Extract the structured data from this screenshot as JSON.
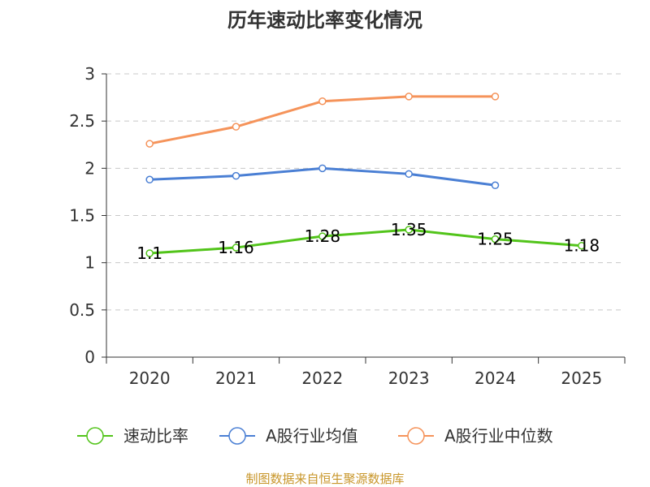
{
  "chart_data": {
    "type": "line",
    "title": "历年速动比率变化情况",
    "categories": [
      "2020",
      "2021",
      "2022",
      "2023",
      "2024",
      "2025"
    ],
    "ylim": [
      0,
      3
    ],
    "yticks": [
      0,
      0.5,
      1,
      1.5,
      2,
      2.5,
      3
    ],
    "ytick_labels": [
      "0",
      "0.5",
      "1",
      "1.5",
      "2",
      "2.5",
      "3"
    ],
    "grid": true,
    "legend_position": "bottom",
    "series": [
      {
        "name": "速动比率",
        "color": "#52c41a",
        "values": [
          1.1,
          1.16,
          1.28,
          1.35,
          1.25,
          1.18
        ],
        "labels": [
          "1.1",
          "1.16",
          "1.28",
          "1.35",
          "1.25",
          "1.18"
        ],
        "show_labels": true
      },
      {
        "name": "A股行业均值",
        "color": "#4a7fd4",
        "values": [
          1.88,
          1.92,
          2.0,
          1.94,
          1.82,
          null
        ],
        "show_labels": false
      },
      {
        "name": "A股行业中位数",
        "color": "#f5935a",
        "values": [
          2.26,
          2.44,
          2.71,
          2.76,
          2.76,
          null
        ],
        "show_labels": false
      }
    ],
    "source": "制图数据来自恒生聚源数据库"
  }
}
